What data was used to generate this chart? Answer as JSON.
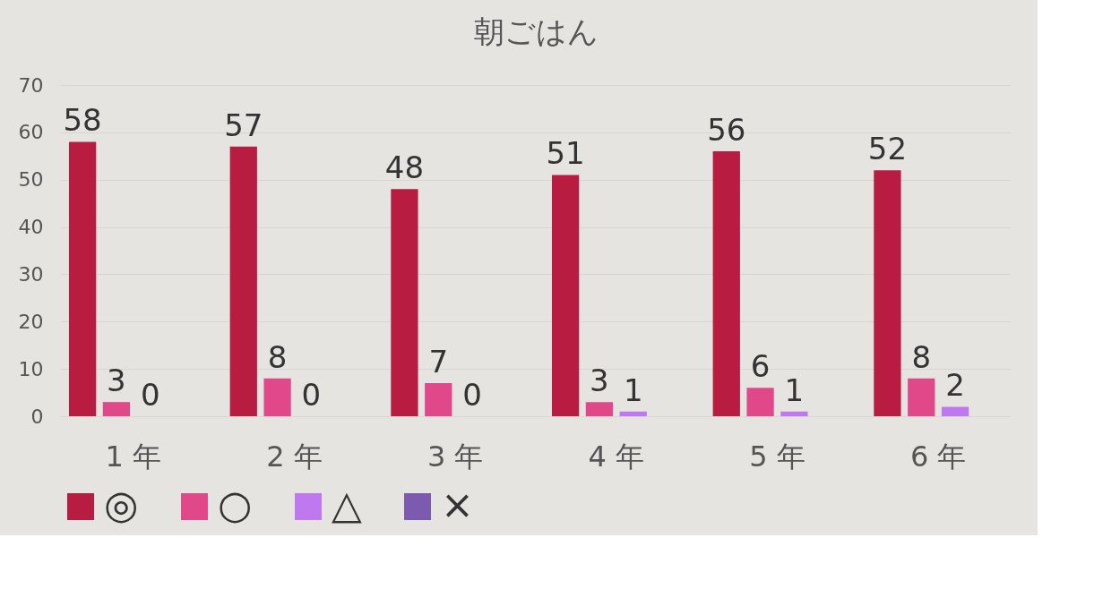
{
  "chart_data": {
    "type": "bar",
    "title": "朝ごはん",
    "categories": [
      "1 年",
      "2 年",
      "3 年",
      "4 年",
      "5 年",
      "6 年"
    ],
    "series": [
      {
        "name": "◎",
        "color": "#b81c40",
        "values": [
          58,
          57,
          48,
          51,
          56,
          52
        ]
      },
      {
        "name": "○",
        "color": "#e0488a",
        "values": [
          3,
          8,
          7,
          3,
          6,
          8
        ]
      },
      {
        "name": "△",
        "color": "#bf78f0",
        "values": [
          0,
          0,
          0,
          1,
          1,
          2
        ]
      },
      {
        "name": "×",
        "color": "#7b5ab0",
        "values": [
          null,
          null,
          null,
          null,
          null,
          null
        ]
      }
    ],
    "ylim": [
      0,
      70
    ],
    "yticks": [
      0,
      10,
      20,
      30,
      40,
      50,
      60,
      70
    ],
    "grid": "y",
    "legend": "bottom",
    "data_labels": true
  }
}
